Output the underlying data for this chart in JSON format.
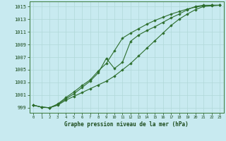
{
  "title": "Graphe pression niveau de la mer (hPa)",
  "background_color": "#c8eaf0",
  "grid_color": "#b0d8d8",
  "line_color": "#2d6e2d",
  "marker_color": "#2d6e2d",
  "xlim": [
    -0.5,
    23.5
  ],
  "ylim": [
    998.2,
    1015.8
  ],
  "yticks": [
    999,
    1001,
    1003,
    1005,
    1007,
    1009,
    1011,
    1013,
    1015
  ],
  "xticks": [
    0,
    1,
    2,
    3,
    4,
    5,
    6,
    7,
    8,
    9,
    10,
    11,
    12,
    13,
    14,
    15,
    16,
    17,
    18,
    19,
    20,
    21,
    22,
    23
  ],
  "line1": [
    999.4,
    999.1,
    999.0,
    999.4,
    1000.2,
    1000.8,
    1001.4,
    1002.0,
    1002.6,
    1003.2,
    1004.0,
    1005.0,
    1006.0,
    1007.2,
    1008.4,
    1009.6,
    1010.8,
    1012.0,
    1013.0,
    1013.8,
    1014.5,
    1015.0,
    1015.1,
    1015.2
  ],
  "line2": [
    999.4,
    999.1,
    999.0,
    999.5,
    1000.4,
    1001.2,
    1002.2,
    1003.2,
    1004.5,
    1006.8,
    1005.2,
    1006.2,
    1009.5,
    1010.5,
    1011.2,
    1011.8,
    1012.5,
    1013.2,
    1013.8,
    1014.5,
    1015.0,
    1015.2,
    1015.2,
    1015.2
  ],
  "line3": [
    999.4,
    999.1,
    999.0,
    999.6,
    1000.6,
    1001.5,
    1002.5,
    1003.4,
    1004.8,
    1006.0,
    1008.0,
    1010.0,
    1010.8,
    1011.5,
    1012.2,
    1012.8,
    1013.3,
    1013.8,
    1014.2,
    1014.6,
    1014.9,
    1015.1,
    1015.2,
    1015.2
  ]
}
